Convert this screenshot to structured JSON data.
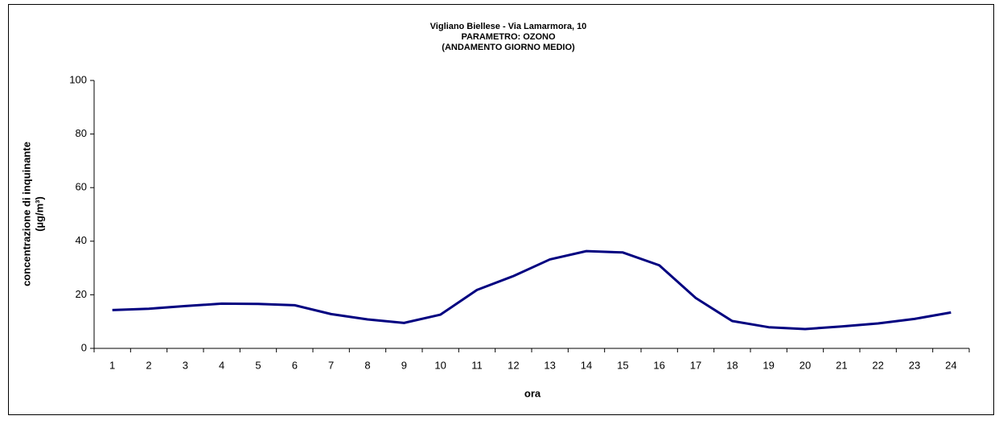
{
  "chart_data": {
    "type": "line",
    "title": [
      "Vigliano Biellese - Via Lamarmora, 10",
      "PARAMETRO: OZONO",
      "(ANDAMENTO GIORNO MEDIO)"
    ],
    "xlabel": "ora",
    "ylabel": [
      "concentrazione di inquinante",
      "(µg/m³)"
    ],
    "categories": [
      "1",
      "2",
      "3",
      "4",
      "5",
      "6",
      "7",
      "8",
      "9",
      "10",
      "11",
      "12",
      "13",
      "14",
      "15",
      "16",
      "17",
      "18",
      "19",
      "20",
      "21",
      "22",
      "23",
      "24"
    ],
    "series": [
      {
        "color": "#000080",
        "values": [
          14.3,
          14.8,
          15.8,
          16.7,
          16.6,
          16.1,
          12.8,
          10.8,
          9.5,
          12.6,
          21.8,
          27,
          33.2,
          36.3,
          35.8,
          31,
          18.8,
          10.2,
          7.9,
          7.2,
          8.2,
          9.3,
          11,
          13.4
        ]
      }
    ],
    "ylim": [
      0,
      100
    ],
    "yticks": [
      0,
      20,
      40,
      60,
      80,
      100
    ],
    "grid": false
  }
}
